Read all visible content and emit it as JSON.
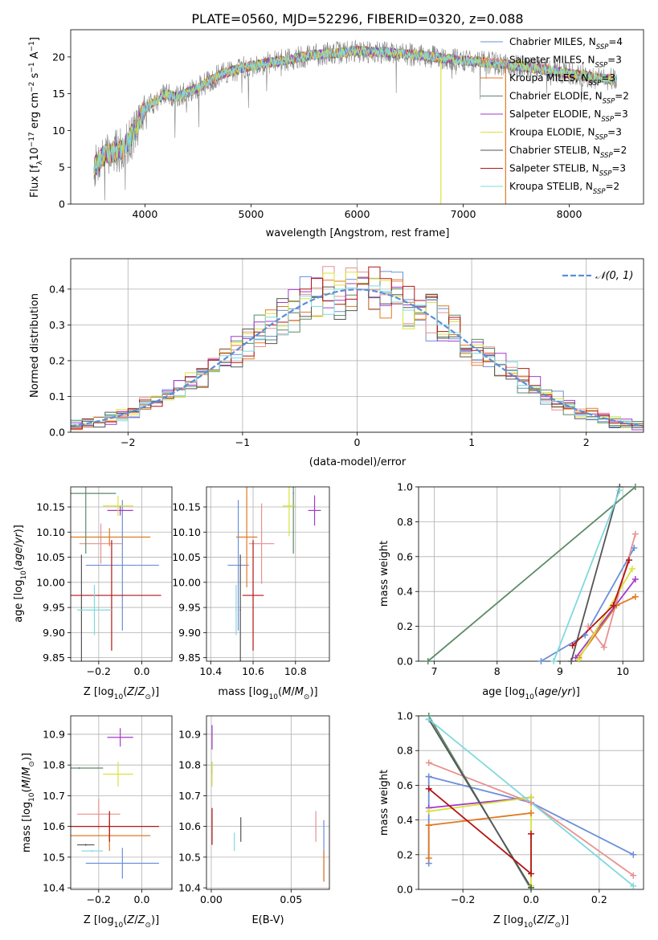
{
  "title": "PLATE=0560, MJD=52296, FIBERID=0320, z=0.088",
  "colors": {
    "Chabrier MILES": "#6b8fd8",
    "Salpeter MILES": "#e8918f",
    "Kroupa MILES": "#e07a22",
    "Chabrier ELODIE": "#5b8a68",
    "Salpeter ELODIE": "#a23bc7",
    "Kroupa ELODIE": "#d9e23a",
    "Chabrier STELIB": "#555555",
    "Salpeter STELIB": "#b31515",
    "Kroupa STELIB": "#7fd9de",
    "normal": "#5b8ed6"
  },
  "chart_data": [
    {
      "id": "spectrum",
      "type": "line",
      "xlabel": "wavelength [Angstrom, rest frame]",
      "ylabel": "Flux [f_λ 10^-17 erg cm^-2 s^-1 A^-1]",
      "xlim": [
        3300,
        8700
      ],
      "ylim": [
        0,
        23.7
      ],
      "xticks": [
        4000,
        5000,
        6000,
        7000,
        8000
      ],
      "yticks": [
        0,
        5,
        10,
        15,
        20
      ],
      "legend_position": "right",
      "legend": [
        {
          "base": "Chabrier MILES, N",
          "sub": "SSP",
          "tail": "=4"
        },
        {
          "base": "Salpeter MILES, N",
          "sub": "SSP",
          "tail": "=3"
        },
        {
          "base": "Kroupa MILES, N",
          "sub": "SSP",
          "tail": "=3"
        },
        {
          "base": "Chabrier ELODIE, N",
          "sub": "SSP",
          "tail": "=2"
        },
        {
          "base": "Salpeter ELODIE, N",
          "sub": "SSP",
          "tail": "=3"
        },
        {
          "base": "Kroupa ELODIE, N",
          "sub": "SSP",
          "tail": "=3"
        },
        {
          "base": "Chabrier STELIB, N",
          "sub": "SSP",
          "tail": "=2"
        },
        {
          "base": "Salpeter STELIB, N",
          "sub": "SSP",
          "tail": "=3"
        },
        {
          "base": "Kroupa STELIB, N",
          "sub": "SSP",
          "tail": "=2"
        }
      ],
      "continuum": {
        "x": [
          3500,
          3600,
          3800,
          3900,
          4000,
          4100,
          4200,
          4300,
          4500,
          4700,
          4800,
          5000,
          5300,
          5600,
          6000,
          6300,
          6600,
          7000,
          7400,
          7800,
          8200,
          8450
        ],
        "y": [
          4.5,
          6.5,
          7.5,
          10,
          13,
          14,
          15,
          14.5,
          15.8,
          17.5,
          18,
          18.8,
          19.5,
          20.3,
          20.8,
          20.6,
          20.2,
          19.5,
          19,
          18.2,
          17.3,
          16.8
        ]
      },
      "data_range": [
        3520,
        8450
      ]
    },
    {
      "id": "residuals",
      "type": "histogram",
      "xlabel": "(data-model)/error",
      "ylabel": "Normed distribution",
      "xlim": [
        -2.5,
        2.5
      ],
      "ylim": [
        0,
        0.485
      ],
      "xticks": [
        -2,
        -1,
        0,
        1,
        2
      ],
      "yticks": [
        0,
        0.1,
        0.2,
        0.3,
        0.4
      ],
      "grid": true,
      "legend": "𝒩(0, 1)",
      "legend_position": "top-right",
      "bins": 50
    },
    {
      "id": "age-vs-Z",
      "type": "errorbar",
      "xlabel": "Z [log10(Z/Z⊙)]",
      "ylabel": "age  [log10(age/yr)]",
      "xlim": [
        -0.33,
        0.14
      ],
      "ylim": [
        9.843,
        10.19
      ],
      "xticks": [
        -0.2,
        0.0
      ],
      "yticks": [
        9.85,
        9.9,
        9.95,
        10.0,
        10.05,
        10.1,
        10.15
      ],
      "grid": true,
      "points": [
        {
          "model": "Chabrier MILES",
          "x": -0.09,
          "y": 10.034,
          "xerr": 0.17,
          "yerr": 0.13
        },
        {
          "model": "Salpeter MILES",
          "x": -0.19,
          "y": 10.077,
          "xerr": 0.1,
          "yerr": 0.04
        },
        {
          "model": "Kroupa MILES",
          "x": -0.15,
          "y": 10.09,
          "xerr": 0.19,
          "yerr": 0.018
        },
        {
          "model": "Chabrier ELODIE",
          "x": -0.26,
          "y": 10.177,
          "xerr": 0.14,
          "yerr": 0.12
        },
        {
          "model": "Salpeter ELODIE",
          "x": -0.1,
          "y": 10.143,
          "xerr": 0.06,
          "yerr": 0.01
        },
        {
          "model": "Kroupa ELODIE",
          "x": -0.11,
          "y": 10.152,
          "xerr": 0.07,
          "yerr": 0.02
        },
        {
          "model": "Chabrier STELIB",
          "x": -0.28,
          "y": 9.945,
          "xerr": 0.003,
          "yerr": 0.11
        },
        {
          "model": "Salpeter STELIB",
          "x": -0.14,
          "y": 9.974,
          "xerr": 0.23,
          "yerr": 0.11
        },
        {
          "model": "Kroupa STELIB",
          "x": -0.22,
          "y": 9.945,
          "xerr": 0.08,
          "yerr": 0.05
        }
      ]
    },
    {
      "id": "age-vs-mass",
      "type": "errorbar",
      "xlabel": "mass [log10(M/M⊙)]",
      "ylabel": "",
      "xlim": [
        10.38,
        10.96
      ],
      "ylim": [
        9.843,
        10.19
      ],
      "xticks": [
        10.4,
        10.6,
        10.8
      ],
      "yticks": [
        9.85,
        9.9,
        9.95,
        10.0,
        10.05,
        10.1,
        10.15
      ],
      "grid": true,
      "points": [
        {
          "model": "Chabrier MILES",
          "x": 10.53,
          "y": 10.034,
          "xerr": 0.05,
          "yerr": 0.13
        },
        {
          "model": "Salpeter MILES",
          "x": 10.64,
          "y": 10.077,
          "xerr": 0.06,
          "yerr": 0.08
        },
        {
          "model": "Kroupa MILES",
          "x": 10.57,
          "y": 10.09,
          "xerr": 0.05,
          "yerr": 0.1
        },
        {
          "model": "Chabrier ELODIE",
          "x": 10.79,
          "y": 10.177,
          "xerr": 0.003,
          "yerr": 0.12
        },
        {
          "model": "Salpeter ELODIE",
          "x": 10.89,
          "y": 10.143,
          "xerr": 0.03,
          "yerr": 0.03
        },
        {
          "model": "Kroupa ELODIE",
          "x": 10.77,
          "y": 10.152,
          "xerr": 0.03,
          "yerr": 0.06
        },
        {
          "model": "Chabrier STELIB",
          "x": 10.54,
          "y": 9.945,
          "xerr": 0.003,
          "yerr": 0.11
        },
        {
          "model": "Salpeter STELIB",
          "x": 10.6,
          "y": 9.974,
          "xerr": 0.05,
          "yerr": 0.11
        },
        {
          "model": "Kroupa STELIB",
          "x": 10.52,
          "y": 9.945,
          "xerr": 0.003,
          "yerr": 0.05
        }
      ]
    },
    {
      "id": "mass-weight-vs-age",
      "type": "line",
      "xlabel": "age  [log10(age/yr)]",
      "ylabel": "mass weight",
      "xlim": [
        6.75,
        10.33
      ],
      "ylim": [
        0,
        1.0
      ],
      "xticks": [
        7,
        8,
        9,
        10
      ],
      "yticks": [
        0.0,
        0.2,
        0.4,
        0.6,
        0.8,
        1.0
      ],
      "grid": true,
      "series": [
        {
          "model": "Chabrier MILES",
          "x": [
            8.7,
            9.4,
            10.18
          ],
          "y": [
            0.0,
            0.15,
            0.65
          ]
        },
        {
          "model": "Salpeter MILES",
          "x": [
            9.45,
            9.7,
            10.2
          ],
          "y": [
            0.2,
            0.08,
            0.73
          ]
        },
        {
          "model": "Kroupa MILES",
          "x": [
            9.3,
            9.9,
            10.2
          ],
          "y": [
            0.02,
            0.32,
            0.37
          ]
        },
        {
          "model": "Chabrier ELODIE",
          "x": [
            6.9,
            10.2
          ],
          "y": [
            0.0,
            1.0
          ]
        },
        {
          "model": "Salpeter ELODIE",
          "x": [
            9.25,
            10.2
          ],
          "y": [
            0.02,
            0.47
          ]
        },
        {
          "model": "Kroupa ELODIE",
          "x": [
            9.3,
            10.15
          ],
          "y": [
            0.01,
            0.53
          ]
        },
        {
          "model": "Chabrier STELIB",
          "x": [
            9.18,
            9.95
          ],
          "y": [
            0.0,
            1.0
          ]
        },
        {
          "model": "Salpeter STELIB",
          "x": [
            9.2,
            9.85,
            10.1
          ],
          "y": [
            0.09,
            0.32,
            0.58
          ]
        },
        {
          "model": "Kroupa STELIB",
          "x": [
            8.9,
            9.95
          ],
          "y": [
            0.0,
            0.98
          ]
        }
      ]
    },
    {
      "id": "mass-vs-Z",
      "type": "errorbar",
      "xlabel": "Z [log10(Z/Z⊙)]",
      "ylabel": "mass [log10(M/M⊙)]",
      "xlim": [
        -0.33,
        0.14
      ],
      "ylim": [
        10.395,
        10.96
      ],
      "xticks": [
        -0.2,
        0.0
      ],
      "yticks": [
        10.4,
        10.5,
        10.6,
        10.7,
        10.8,
        10.9
      ],
      "grid": true,
      "points": [
        {
          "model": "Chabrier MILES",
          "x": -0.09,
          "y": 10.48,
          "xerr": 0.17,
          "yerr": 0.05
        },
        {
          "model": "Salpeter MILES",
          "x": -0.2,
          "y": 10.64,
          "xerr": 0.1,
          "yerr": 0.05
        },
        {
          "model": "Kroupa MILES",
          "x": -0.15,
          "y": 10.57,
          "xerr": 0.19,
          "yerr": 0.05
        },
        {
          "model": "Chabrier ELODIE",
          "x": -0.29,
          "y": 10.79,
          "xerr": 0.11,
          "yerr": 0.003
        },
        {
          "model": "Salpeter ELODIE",
          "x": -0.1,
          "y": 10.89,
          "xerr": 0.06,
          "yerr": 0.03
        },
        {
          "model": "Kroupa ELODIE",
          "x": -0.11,
          "y": 10.77,
          "xerr": 0.07,
          "yerr": 0.04
        },
        {
          "model": "Chabrier STELIB",
          "x": -0.26,
          "y": 10.54,
          "xerr": 0.04,
          "yerr": 0.003
        },
        {
          "model": "Salpeter STELIB",
          "x": -0.15,
          "y": 10.6,
          "xerr": 0.23,
          "yerr": 0.05
        },
        {
          "model": "Kroupa STELIB",
          "x": -0.23,
          "y": 10.52,
          "xerr": 0.05,
          "yerr": 0.003
        }
      ]
    },
    {
      "id": "mass-vs-EBV",
      "type": "errorbar",
      "xlabel": "E(B-V)",
      "ylabel": "",
      "xlim": [
        -0.003,
        0.074
      ],
      "ylim": [
        10.395,
        10.96
      ],
      "xticks": [
        0.0,
        0.05
      ],
      "yticks": [
        10.4,
        10.5,
        10.6,
        10.7,
        10.8,
        10.9
      ],
      "grid": true,
      "points": [
        {
          "model": "Chabrier MILES",
          "x": 0.0705,
          "y": 10.52,
          "xerr": 0.0,
          "yerr": 0.1
        },
        {
          "model": "Salpeter MILES",
          "x": 0.0655,
          "y": 10.6,
          "xerr": 0.0,
          "yerr": 0.05
        },
        {
          "model": "Kroupa MILES",
          "x": 0.0705,
          "y": 10.47,
          "xerr": 0.0,
          "yerr": 0.05
        },
        {
          "model": "Chabrier ELODIE",
          "x": 0.0005,
          "y": 10.79,
          "xerr": 0.0,
          "yerr": 0.02
        },
        {
          "model": "Salpeter ELODIE",
          "x": 0.0005,
          "y": 10.89,
          "xerr": 0.0,
          "yerr": 0.04
        },
        {
          "model": "Kroupa ELODIE",
          "x": 0.0005,
          "y": 10.77,
          "xerr": 0.0,
          "yerr": 0.04
        },
        {
          "model": "Chabrier STELIB",
          "x": 0.0185,
          "y": 10.59,
          "xerr": 0.0,
          "yerr": 0.04
        },
        {
          "model": "Salpeter STELIB",
          "x": 0.0005,
          "y": 10.6,
          "xerr": 0.0,
          "yerr": 0.06
        },
        {
          "model": "Kroupa STELIB",
          "x": 0.0145,
          "y": 10.55,
          "xerr": 0.0,
          "yerr": 0.03
        }
      ]
    },
    {
      "id": "mass-weight-vs-Z",
      "type": "line",
      "xlabel": "Z [log10(Z/Z⊙)]",
      "ylabel": "mass weight",
      "xlim": [
        -0.33,
        0.33
      ],
      "ylim": [
        0,
        1.0
      ],
      "xticks": [
        -0.2,
        0.0,
        0.2
      ],
      "yticks": [
        0.0,
        0.2,
        0.4,
        0.6,
        0.8,
        1.0
      ],
      "grid": true,
      "series": [
        {
          "model": "Chabrier MILES",
          "x": [
            -0.3,
            0.0,
            0.3
          ],
          "y": [
            0.65,
            0.5,
            0.2
          ]
        },
        {
          "model": "Chabrier MILES",
          "x": [
            -0.3,
            -0.3
          ],
          "y": [
            0.65,
            0.15
          ]
        },
        {
          "model": "Salpeter MILES",
          "x": [
            -0.3,
            0.0,
            0.3
          ],
          "y": [
            0.73,
            0.5,
            0.08
          ]
        },
        {
          "model": "Kroupa MILES",
          "x": [
            -0.3,
            0.0
          ],
          "y": [
            0.37,
            0.44
          ]
        },
        {
          "model": "Kroupa MILES",
          "x": [
            -0.3,
            -0.3
          ],
          "y": [
            0.37,
            0.18
          ]
        },
        {
          "model": "Chabrier ELODIE",
          "x": [
            -0.3,
            0.0
          ],
          "y": [
            1.0,
            0.0
          ]
        },
        {
          "model": "Salpeter ELODIE",
          "x": [
            -0.3,
            0.0
          ],
          "y": [
            0.47,
            0.53
          ]
        },
        {
          "model": "Kroupa ELODIE",
          "x": [
            -0.3,
            0.0,
            0.0
          ],
          "y": [
            0.45,
            0.53,
            0.02
          ]
        },
        {
          "model": "Chabrier STELIB",
          "x": [
            -0.3,
            0.0
          ],
          "y": [
            0.98,
            0.01
          ]
        },
        {
          "model": "Salpeter STELIB",
          "x": [
            -0.3,
            0.0,
            0.0
          ],
          "y": [
            0.58,
            0.09,
            0.32
          ]
        },
        {
          "model": "Kroupa STELIB",
          "x": [
            -0.3,
            0.3
          ],
          "y": [
            0.98,
            0.02
          ]
        }
      ]
    }
  ]
}
